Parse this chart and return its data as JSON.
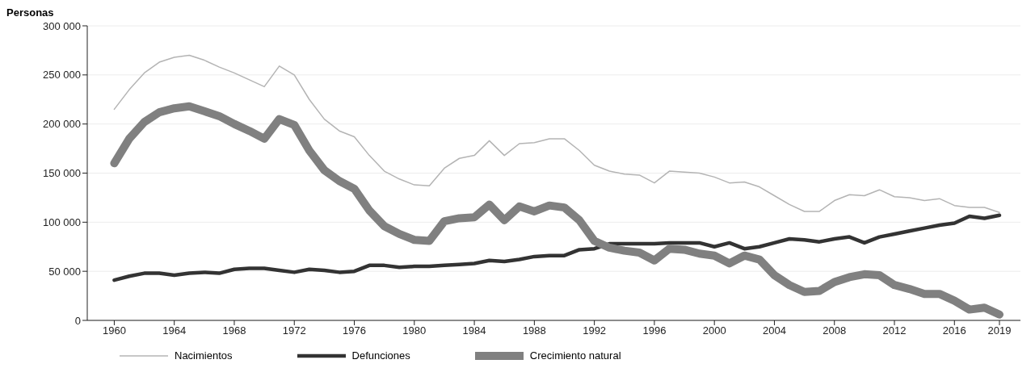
{
  "chart_data": {
    "type": "line",
    "ylabel": "Personas",
    "x": [
      1960,
      1961,
      1962,
      1963,
      1964,
      1965,
      1966,
      1967,
      1968,
      1969,
      1970,
      1971,
      1972,
      1973,
      1974,
      1975,
      1976,
      1977,
      1978,
      1979,
      1980,
      1981,
      1982,
      1983,
      1984,
      1985,
      1986,
      1987,
      1988,
      1989,
      1990,
      1991,
      1992,
      1993,
      1994,
      1995,
      1996,
      1997,
      1998,
      1999,
      2000,
      2001,
      2002,
      2003,
      2004,
      2005,
      2006,
      2007,
      2008,
      2009,
      2010,
      2011,
      2012,
      2013,
      2014,
      2015,
      2016,
      2017,
      2018,
      2019
    ],
    "series": [
      {
        "name": "Nacimientos",
        "color": "#b4b4b4",
        "values": [
          215000,
          235000,
          252000,
          263000,
          268000,
          270000,
          265000,
          258000,
          252000,
          245000,
          238000,
          259000,
          250000,
          225000,
          205000,
          193000,
          187000,
          168000,
          152000,
          144000,
          138000,
          137000,
          155000,
          165000,
          168000,
          183000,
          168000,
          180000,
          181000,
          185000,
          185000,
          173000,
          158000,
          152000,
          149000,
          148000,
          140000,
          152000,
          151000,
          150000,
          146000,
          140000,
          141000,
          136000,
          127000,
          118000,
          111000,
          111000,
          122000,
          128000,
          127000,
          133000,
          126000,
          125000,
          122000,
          124000,
          117000,
          115000,
          115000,
          110000
        ]
      },
      {
        "name": "Defunciones",
        "color": "#333333",
        "values": [
          41000,
          45000,
          48000,
          48000,
          46000,
          48000,
          49000,
          48000,
          52000,
          53000,
          53000,
          51000,
          49000,
          52000,
          51000,
          49000,
          50000,
          56000,
          56000,
          54000,
          55000,
          55000,
          56000,
          57000,
          58000,
          61000,
          60000,
          62000,
          65000,
          66000,
          66000,
          72000,
          73000,
          78000,
          78000,
          78000,
          78000,
          79000,
          79000,
          79000,
          75000,
          79000,
          73000,
          75000,
          79000,
          83000,
          82000,
          80000,
          83000,
          85000,
          79000,
          85000,
          88000,
          91000,
          94000,
          97000,
          99000,
          106000,
          104000,
          107000
        ]
      },
      {
        "name": "Crecimiento natural",
        "color": "#808080",
        "values": [
          160000,
          185000,
          202000,
          212000,
          216000,
          218000,
          213000,
          208000,
          200000,
          193000,
          185000,
          205000,
          199000,
          173000,
          153000,
          142000,
          134000,
          112000,
          96000,
          88000,
          82000,
          81000,
          101000,
          104000,
          105000,
          118000,
          102000,
          116000,
          111000,
          117000,
          115000,
          102000,
          81000,
          74000,
          71000,
          69000,
          61000,
          73000,
          72000,
          68000,
          66000,
          58000,
          66000,
          62000,
          46000,
          36000,
          29000,
          30000,
          39000,
          44000,
          47000,
          46000,
          36000,
          32000,
          27000,
          27000,
          20000,
          11000,
          13000,
          6000
        ]
      }
    ],
    "xlim": [
      1958.2,
      2020.4
    ],
    "xticks": [
      1960,
      1964,
      1968,
      1972,
      1976,
      1980,
      1984,
      1988,
      1992,
      1996,
      2000,
      2004,
      2008,
      2012,
      2016,
      2019
    ],
    "ylim": [
      0,
      300000
    ],
    "yticks": [
      0,
      {
        "value": 50000,
        "label": "50 000"
      },
      {
        "value": 100000,
        "label": "100 000"
      },
      {
        "value": 150000,
        "label": "150 000"
      },
      {
        "value": 200000,
        "label": "200 000"
      },
      {
        "value": 250000,
        "label": "250 000"
      },
      {
        "value": 300000,
        "label": "300 000"
      }
    ],
    "grid": "y",
    "legend": "bottom",
    "marker": "none",
    "line_style": "solid"
  }
}
